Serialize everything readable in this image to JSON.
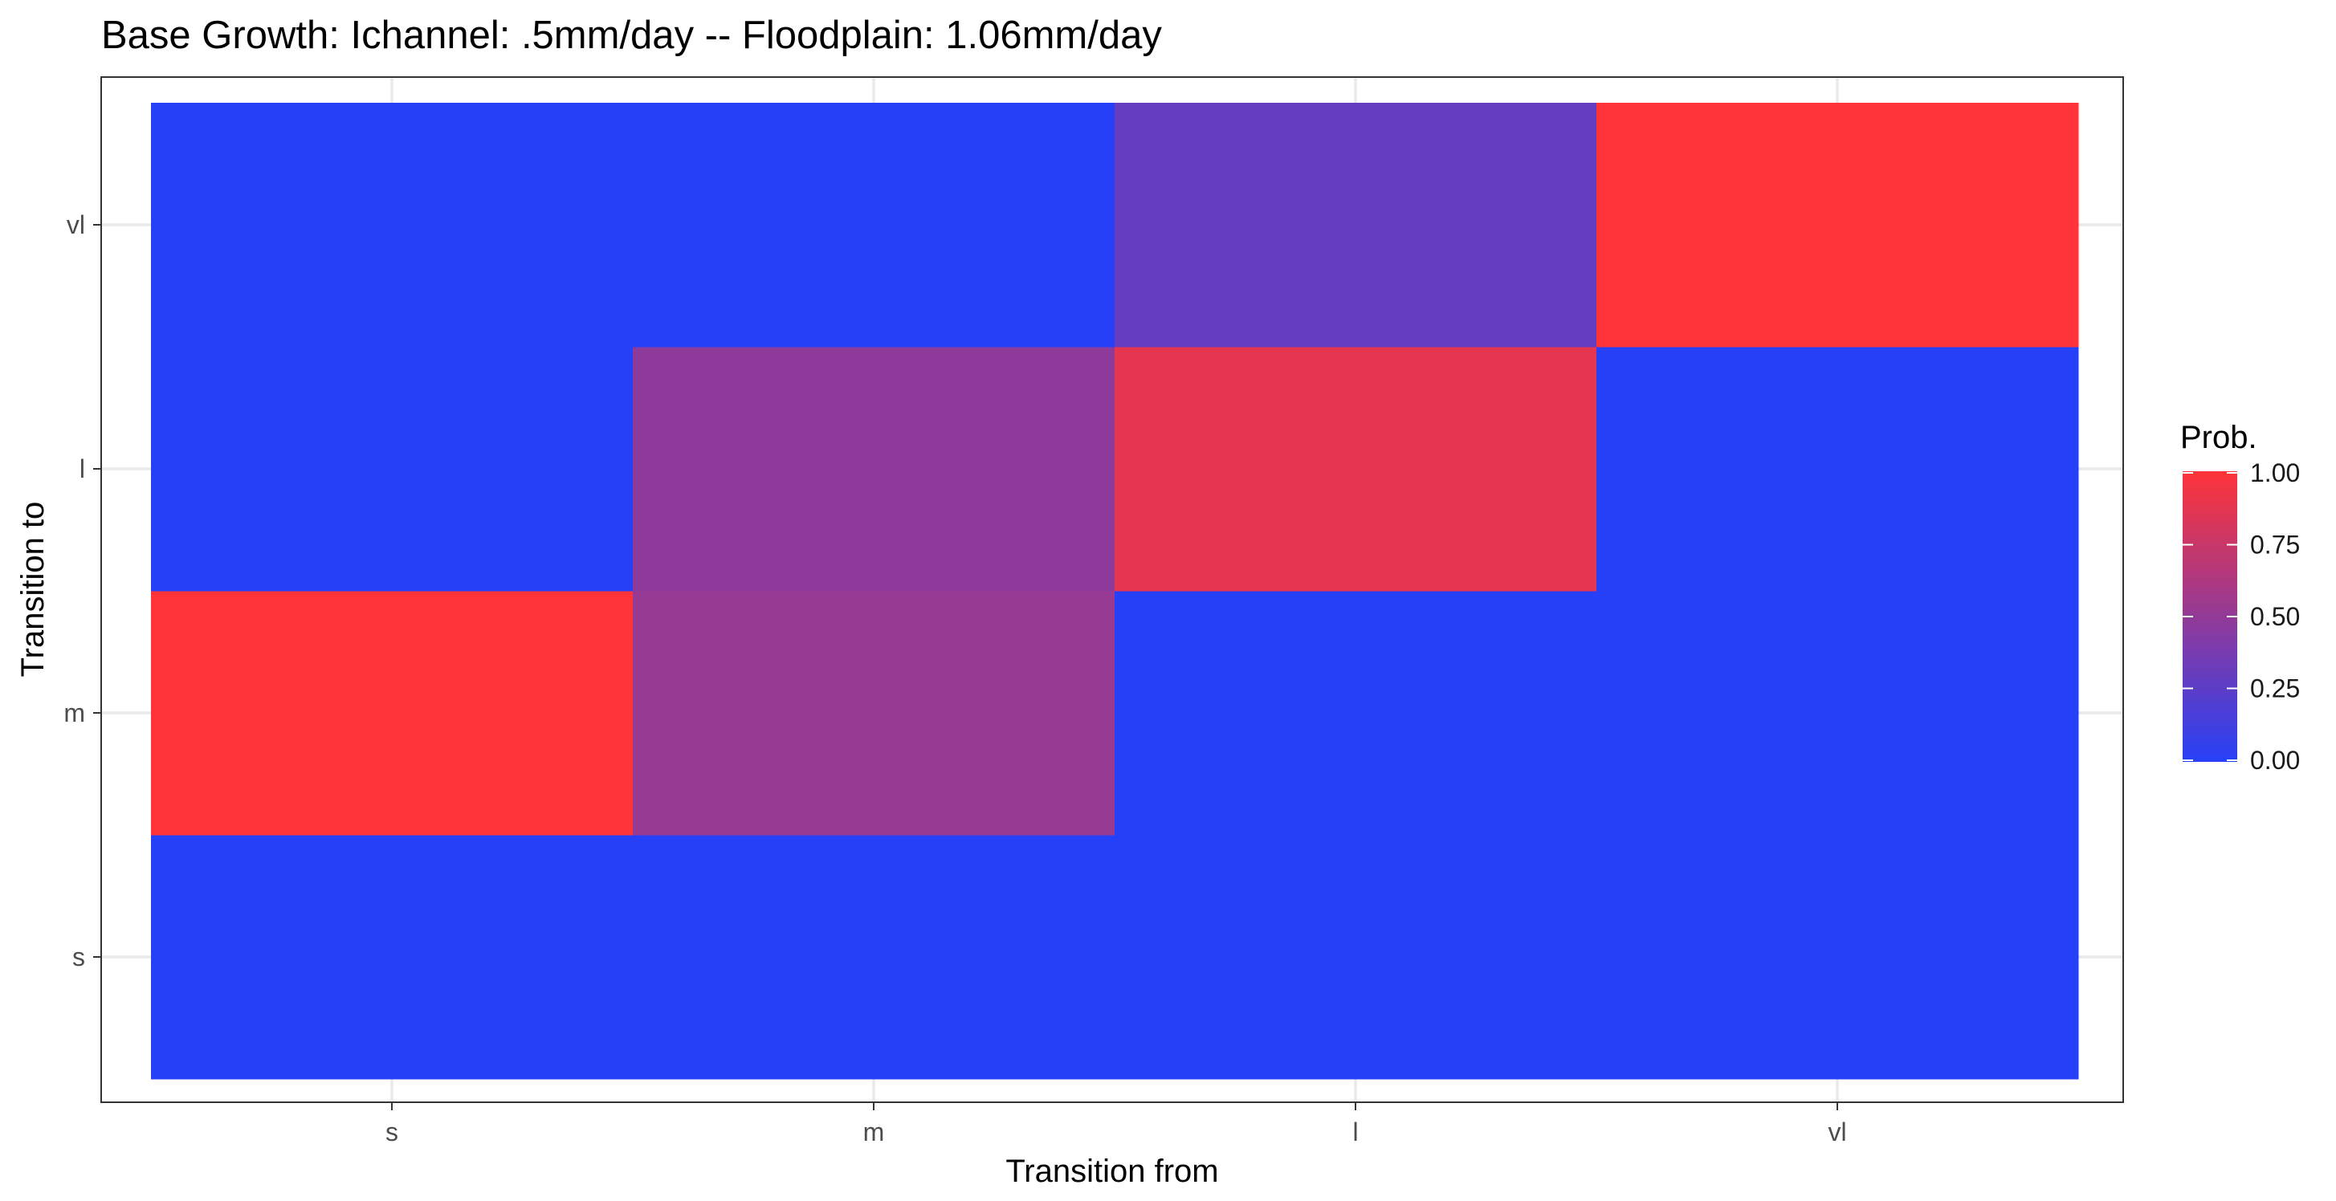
{
  "chart_data": {
    "type": "heatmap",
    "title": "Base Growth: Ichannel: .5mm/day -- Floodplain: 1.06mm/day",
    "xlabel": "Transition from",
    "ylabel": "Transition to",
    "x_categories": [
      "s",
      "m",
      "l",
      "vl"
    ],
    "y_categories": [
      "s",
      "m",
      "l",
      "vl"
    ],
    "values": [
      [
        0.0,
        0.0,
        0.0,
        0.0
      ],
      [
        1.0,
        0.52,
        0.0,
        0.0
      ],
      [
        0.0,
        0.48,
        0.88,
        0.0
      ],
      [
        0.0,
        0.0,
        0.29,
        1.0
      ]
    ],
    "legend": {
      "title": "Prob.",
      "ticks": [
        "0.00",
        "0.25",
        "0.50",
        "0.75",
        "1.00"
      ],
      "range": [
        0,
        1
      ],
      "low_color": "#2640f7",
      "high_color": "#ff3438",
      "placement": "right"
    },
    "grid": true
  }
}
